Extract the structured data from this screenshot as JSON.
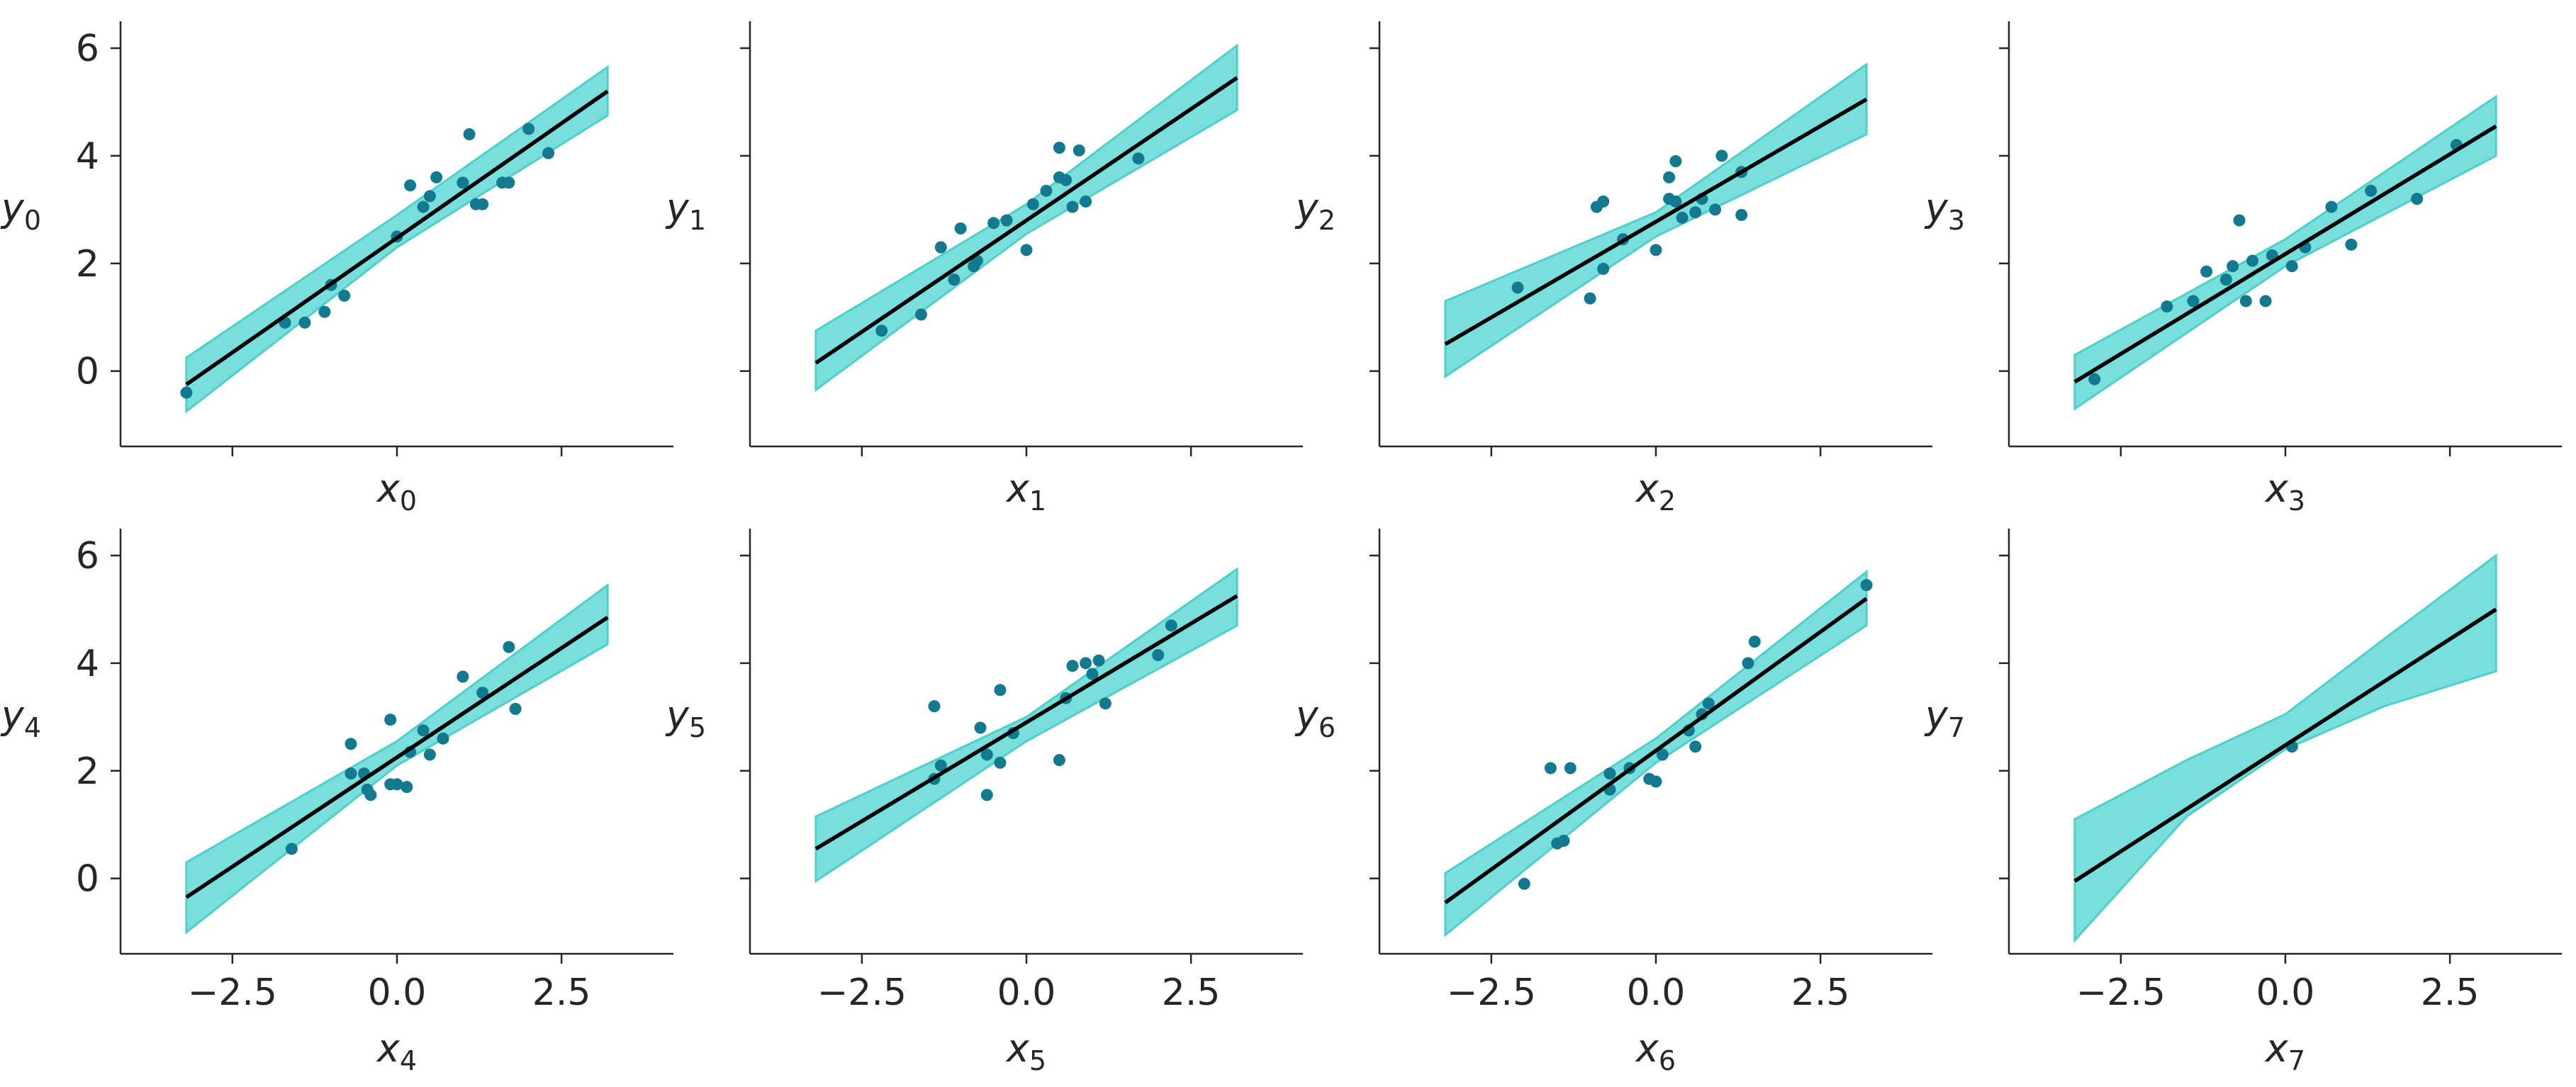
{
  "figure": {
    "style": {
      "band_fill": "#79dfdc",
      "band_stroke": "#4fcfca",
      "line_color": "#000000",
      "point_color": "#12798f",
      "axis_color": "#262626"
    },
    "x_ticks": [
      "−2.5",
      "0.0",
      "2.5"
    ],
    "y_ticks": [
      "0",
      "2",
      "4",
      "6"
    ]
  },
  "chart_data": [
    {
      "type": "scatter",
      "xlabel": {
        "symbol": "x",
        "sub": "0"
      },
      "ylabel": {
        "symbol": "y",
        "sub": "0"
      },
      "xlim": [
        -4.2,
        4.2
      ],
      "ylim": [
        -1.4,
        6.5
      ],
      "grid": false,
      "x_ticks": [
        -2.5,
        0.0,
        2.5
      ],
      "y_ticks": [
        0,
        2,
        4,
        6
      ],
      "show_x_tick_labels": false,
      "show_y_tick_labels": true,
      "fit_line": {
        "x": [
          -3.2,
          3.2
        ],
        "y": [
          -0.25,
          5.2
        ]
      },
      "band": {
        "x": [
          -3.2,
          0,
          3.2
        ],
        "upper": [
          0.25,
          2.9,
          5.65
        ],
        "lower": [
          -0.75,
          2.3,
          4.75
        ]
      },
      "points": [
        [
          -3.2,
          -0.4
        ],
        [
          -1.7,
          0.9
        ],
        [
          -1.4,
          0.9
        ],
        [
          -1.1,
          1.1
        ],
        [
          -1.0,
          1.6
        ],
        [
          -0.8,
          1.4
        ],
        [
          0.0,
          2.5
        ],
        [
          0.2,
          3.45
        ],
        [
          0.4,
          3.05
        ],
        [
          0.5,
          3.25
        ],
        [
          0.6,
          3.6
        ],
        [
          1.0,
          3.5
        ],
        [
          1.1,
          4.4
        ],
        [
          1.2,
          3.1
        ],
        [
          1.3,
          3.1
        ],
        [
          1.6,
          3.5
        ],
        [
          1.7,
          3.5
        ],
        [
          2.0,
          4.5
        ],
        [
          2.3,
          4.05
        ]
      ]
    },
    {
      "type": "scatter",
      "xlabel": {
        "symbol": "x",
        "sub": "1"
      },
      "ylabel": {
        "symbol": "y",
        "sub": "1"
      },
      "xlim": [
        -4.2,
        4.2
      ],
      "ylim": [
        -1.4,
        6.5
      ],
      "grid": false,
      "x_ticks": [
        -2.5,
        0.0,
        2.5
      ],
      "y_ticks": [
        0,
        2,
        4,
        6
      ],
      "show_x_tick_labels": false,
      "show_y_tick_labels": false,
      "fit_line": {
        "x": [
          -3.2,
          3.2
        ],
        "y": [
          0.15,
          5.45
        ]
      },
      "band": {
        "x": [
          -3.2,
          0,
          3.2
        ],
        "upper": [
          0.75,
          3.1,
          6.05
        ],
        "lower": [
          -0.35,
          2.55,
          4.85
        ]
      },
      "points": [
        [
          -2.2,
          0.75
        ],
        [
          -1.6,
          1.05
        ],
        [
          -1.3,
          2.3
        ],
        [
          -1.1,
          1.7
        ],
        [
          -1.0,
          2.65
        ],
        [
          -0.8,
          1.95
        ],
        [
          -0.75,
          2.05
        ],
        [
          -0.5,
          2.75
        ],
        [
          -0.3,
          2.8
        ],
        [
          0.0,
          2.25
        ],
        [
          0.1,
          3.1
        ],
        [
          0.3,
          3.35
        ],
        [
          0.5,
          3.6
        ],
        [
          0.5,
          4.15
        ],
        [
          0.6,
          3.55
        ],
        [
          0.7,
          3.05
        ],
        [
          0.8,
          4.1
        ],
        [
          0.9,
          3.15
        ],
        [
          1.7,
          3.95
        ]
      ]
    },
    {
      "type": "scatter",
      "xlabel": {
        "symbol": "x",
        "sub": "2"
      },
      "ylabel": {
        "symbol": "y",
        "sub": "2"
      },
      "xlim": [
        -4.2,
        4.2
      ],
      "ylim": [
        -1.4,
        6.5
      ],
      "grid": false,
      "x_ticks": [
        -2.5,
        0.0,
        2.5
      ],
      "y_ticks": [
        0,
        2,
        4,
        6
      ],
      "show_x_tick_labels": false,
      "show_y_tick_labels": false,
      "fit_line": {
        "x": [
          -3.2,
          3.2
        ],
        "y": [
          0.5,
          5.05
        ]
      },
      "band": {
        "x": [
          -3.2,
          0,
          3.2
        ],
        "upper": [
          1.3,
          2.95,
          5.7
        ],
        "lower": [
          -0.1,
          2.5,
          4.4
        ]
      },
      "points": [
        [
          -2.1,
          1.55
        ],
        [
          -1.0,
          1.35
        ],
        [
          -0.9,
          3.05
        ],
        [
          -0.8,
          3.15
        ],
        [
          -0.8,
          1.9
        ],
        [
          -0.5,
          2.45
        ],
        [
          0.0,
          2.25
        ],
        [
          0.2,
          3.2
        ],
        [
          0.2,
          3.6
        ],
        [
          0.3,
          3.9
        ],
        [
          0.3,
          3.15
        ],
        [
          0.4,
          2.85
        ],
        [
          0.6,
          2.95
        ],
        [
          0.7,
          3.2
        ],
        [
          0.9,
          3.0
        ],
        [
          1.0,
          4.0
        ],
        [
          1.3,
          3.7
        ],
        [
          1.3,
          2.9
        ]
      ]
    },
    {
      "type": "scatter",
      "xlabel": {
        "symbol": "x",
        "sub": "3"
      },
      "ylabel": {
        "symbol": "y",
        "sub": "3"
      },
      "xlim": [
        -4.2,
        4.2
      ],
      "ylim": [
        -1.4,
        6.5
      ],
      "grid": false,
      "x_ticks": [
        -2.5,
        0.0,
        2.5
      ],
      "y_ticks": [
        0,
        2,
        4,
        6
      ],
      "show_x_tick_labels": false,
      "show_y_tick_labels": false,
      "fit_line": {
        "x": [
          -3.2,
          3.2
        ],
        "y": [
          -0.2,
          4.55
        ]
      },
      "band": {
        "x": [
          -3.2,
          0,
          3.2
        ],
        "upper": [
          0.3,
          2.45,
          5.1
        ],
        "lower": [
          -0.7,
          1.95,
          4.0
        ]
      },
      "points": [
        [
          -2.9,
          -0.15
        ],
        [
          -1.8,
          1.2
        ],
        [
          -1.4,
          1.3
        ],
        [
          -1.2,
          1.85
        ],
        [
          -0.9,
          1.7
        ],
        [
          -0.8,
          1.95
        ],
        [
          -0.7,
          2.8
        ],
        [
          -0.6,
          1.3
        ],
        [
          -0.5,
          2.05
        ],
        [
          -0.3,
          1.3
        ],
        [
          -0.2,
          2.15
        ],
        [
          0.1,
          1.95
        ],
        [
          0.3,
          2.3
        ],
        [
          0.7,
          3.05
        ],
        [
          1.0,
          2.35
        ],
        [
          1.3,
          3.35
        ],
        [
          2.0,
          3.2
        ],
        [
          2.6,
          4.2
        ]
      ]
    },
    {
      "type": "scatter",
      "xlabel": {
        "symbol": "x",
        "sub": "4"
      },
      "ylabel": {
        "symbol": "y",
        "sub": "4"
      },
      "xlim": [
        -4.2,
        4.2
      ],
      "ylim": [
        -1.4,
        6.5
      ],
      "grid": false,
      "x_ticks": [
        -2.5,
        0.0,
        2.5
      ],
      "y_ticks": [
        0,
        2,
        4,
        6
      ],
      "show_x_tick_labels": true,
      "show_y_tick_labels": true,
      "fit_line": {
        "x": [
          -3.2,
          3.2
        ],
        "y": [
          -0.35,
          4.85
        ]
      },
      "band": {
        "x": [
          -3.2,
          0,
          3.2
        ],
        "upper": [
          0.3,
          2.55,
          5.45
        ],
        "lower": [
          -1.0,
          2.1,
          4.35
        ]
      },
      "points": [
        [
          -1.6,
          0.55
        ],
        [
          -0.7,
          2.5
        ],
        [
          -0.7,
          1.95
        ],
        [
          -0.5,
          1.95
        ],
        [
          -0.45,
          1.65
        ],
        [
          -0.4,
          1.55
        ],
        [
          -0.1,
          2.95
        ],
        [
          -0.1,
          1.75
        ],
        [
          0.0,
          1.75
        ],
        [
          0.15,
          1.7
        ],
        [
          0.2,
          2.35
        ],
        [
          0.4,
          2.75
        ],
        [
          0.5,
          2.3
        ],
        [
          0.7,
          2.6
        ],
        [
          1.0,
          3.75
        ],
        [
          1.3,
          3.45
        ],
        [
          1.7,
          4.3
        ],
        [
          1.8,
          3.15
        ]
      ]
    },
    {
      "type": "scatter",
      "xlabel": {
        "symbol": "x",
        "sub": "5"
      },
      "ylabel": {
        "symbol": "y",
        "sub": "5"
      },
      "xlim": [
        -4.2,
        4.2
      ],
      "ylim": [
        -1.4,
        6.5
      ],
      "grid": false,
      "x_ticks": [
        -2.5,
        0.0,
        2.5
      ],
      "y_ticks": [
        0,
        2,
        4,
        6
      ],
      "show_x_tick_labels": true,
      "show_y_tick_labels": false,
      "fit_line": {
        "x": [
          -3.2,
          3.2
        ],
        "y": [
          0.55,
          5.25
        ]
      },
      "band": {
        "x": [
          -3.2,
          0,
          3.2
        ],
        "upper": [
          1.15,
          3.0,
          5.75
        ],
        "lower": [
          -0.05,
          2.55,
          4.7
        ]
      },
      "points": [
        [
          -1.4,
          1.85
        ],
        [
          -1.3,
          2.1
        ],
        [
          -1.4,
          3.2
        ],
        [
          -0.7,
          2.8
        ],
        [
          -0.6,
          2.3
        ],
        [
          -0.6,
          1.55
        ],
        [
          -0.4,
          2.15
        ],
        [
          -0.4,
          3.5
        ],
        [
          -0.2,
          2.7
        ],
        [
          0.5,
          2.2
        ],
        [
          0.6,
          3.35
        ],
        [
          0.7,
          3.95
        ],
        [
          0.9,
          4.0
        ],
        [
          1.0,
          3.8
        ],
        [
          1.1,
          4.05
        ],
        [
          1.2,
          3.25
        ],
        [
          2.0,
          4.15
        ],
        [
          2.2,
          4.7
        ]
      ]
    },
    {
      "type": "scatter",
      "xlabel": {
        "symbol": "x",
        "sub": "6"
      },
      "ylabel": {
        "symbol": "y",
        "sub": "6"
      },
      "xlim": [
        -4.2,
        4.2
      ],
      "ylim": [
        -1.4,
        6.5
      ],
      "grid": false,
      "x_ticks": [
        -2.5,
        0.0,
        2.5
      ],
      "y_ticks": [
        0,
        2,
        4,
        6
      ],
      "show_x_tick_labels": true,
      "show_y_tick_labels": false,
      "fit_line": {
        "x": [
          -3.2,
          3.2
        ],
        "y": [
          -0.45,
          5.2
        ]
      },
      "band": {
        "x": [
          -3.2,
          0,
          3.2
        ],
        "upper": [
          0.1,
          2.6,
          5.7
        ],
        "lower": [
          -1.05,
          2.15,
          4.7
        ]
      },
      "points": [
        [
          -2.0,
          -0.1
        ],
        [
          -1.6,
          2.05
        ],
        [
          -1.5,
          0.65
        ],
        [
          -1.4,
          0.7
        ],
        [
          -1.3,
          2.05
        ],
        [
          -0.7,
          1.65
        ],
        [
          -0.7,
          1.95
        ],
        [
          -0.4,
          2.05
        ],
        [
          -0.1,
          1.85
        ],
        [
          0.0,
          1.8
        ],
        [
          0.1,
          2.3
        ],
        [
          0.5,
          2.75
        ],
        [
          0.6,
          2.45
        ],
        [
          0.7,
          3.05
        ],
        [
          0.8,
          3.25
        ],
        [
          1.4,
          4.0
        ],
        [
          1.5,
          4.4
        ],
        [
          3.2,
          5.45
        ]
      ]
    },
    {
      "type": "scatter",
      "xlabel": {
        "symbol": "x",
        "sub": "7"
      },
      "ylabel": {
        "symbol": "y",
        "sub": "7"
      },
      "xlim": [
        -4.2,
        4.2
      ],
      "ylim": [
        -1.4,
        6.5
      ],
      "grid": false,
      "x_ticks": [
        -2.5,
        0.0,
        2.5
      ],
      "y_ticks": [
        0,
        2,
        4,
        6
      ],
      "show_x_tick_labels": true,
      "show_y_tick_labels": false,
      "fit_line": {
        "x": [
          -3.2,
          3.2
        ],
        "y": [
          -0.05,
          5.0
        ]
      },
      "band": {
        "x": [
          -3.2,
          -1.5,
          0,
          1.5,
          3.2
        ],
        "upper": [
          1.1,
          2.2,
          3.05,
          4.45,
          6.0
        ],
        "lower": [
          -1.15,
          1.15,
          2.4,
          3.2,
          3.85
        ]
      },
      "points": [
        [
          0.1,
          2.45
        ]
      ]
    }
  ]
}
